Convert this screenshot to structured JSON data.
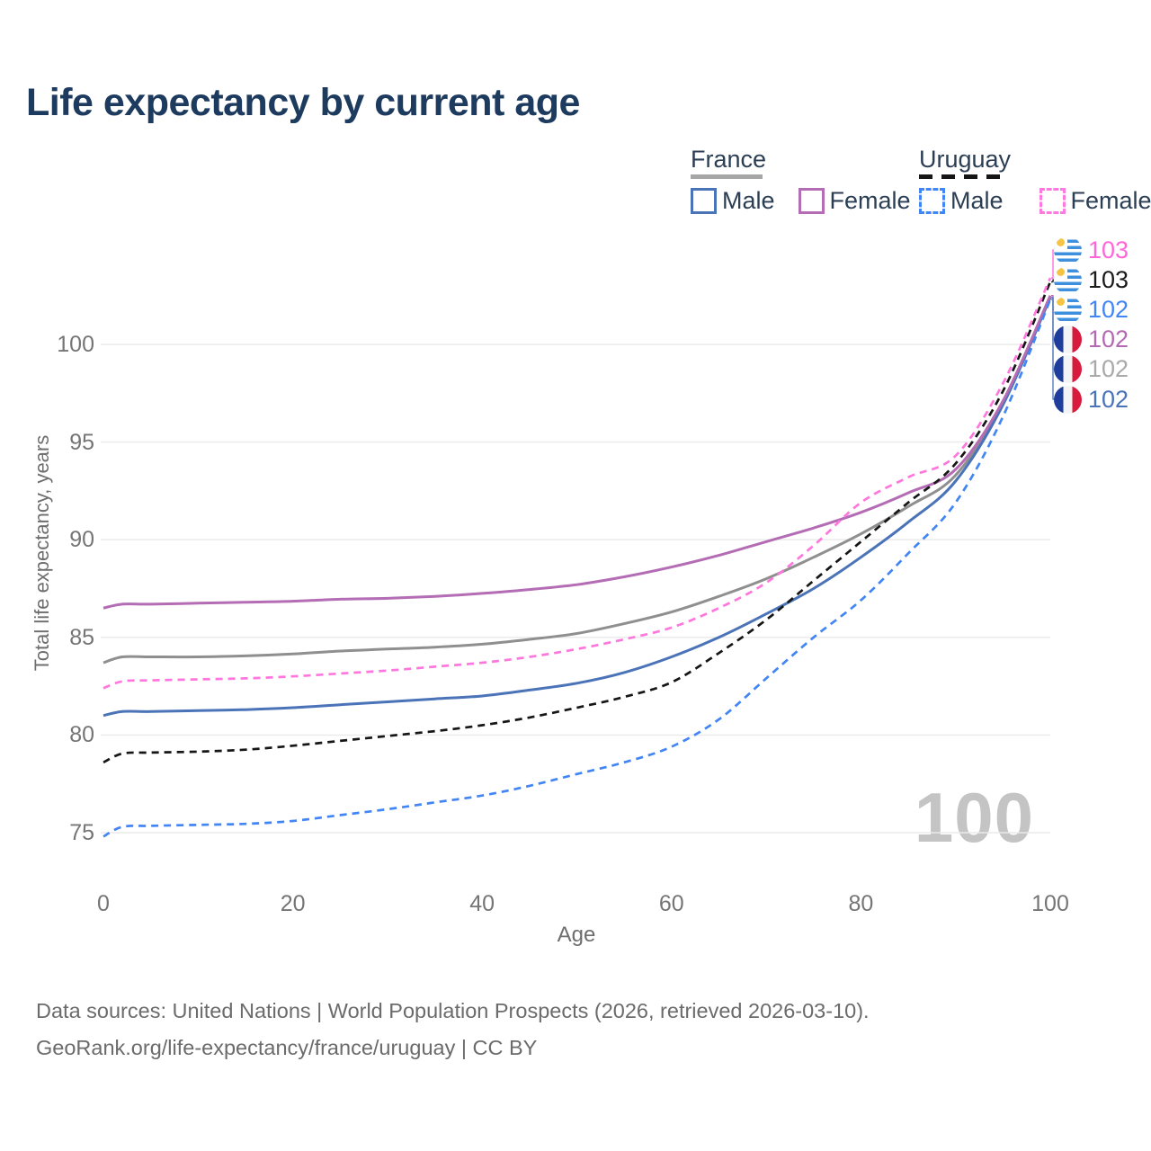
{
  "page": {
    "title": "Life expectancy by current age"
  },
  "legend": {
    "groups": [
      {
        "id": "france",
        "label": "France",
        "line_style": "solid",
        "line_color": "#a6a6a6",
        "items": [
          {
            "label": "Male",
            "color": "#4a73b8",
            "dash": false
          },
          {
            "label": "Female",
            "color": "#b46cb4",
            "dash": false
          }
        ]
      },
      {
        "id": "uruguay",
        "label": "Uruguay",
        "line_style": "dashed",
        "line_color": "#161616",
        "items": [
          {
            "label": "Male",
            "color": "#4285f4",
            "dash": true
          },
          {
            "label": "Female",
            "color": "#ff7ade",
            "dash": true
          }
        ]
      }
    ]
  },
  "watermark": "100",
  "end_labels": [
    {
      "flag": "uruguay",
      "value": "103",
      "color": "#ff66d9",
      "series": "Uruguay female"
    },
    {
      "flag": "uruguay",
      "value": "103",
      "color": "#1a1a1a",
      "series": "Uruguay (both sexes)"
    },
    {
      "flag": "uruguay",
      "value": "102",
      "color": "#4285f4",
      "series": "Uruguay male"
    },
    {
      "flag": "france",
      "value": "102",
      "color": "#b36ab3",
      "series": "France female"
    },
    {
      "flag": "france",
      "value": "102",
      "color": "#a9a9a9",
      "series": "France (both sexes)"
    },
    {
      "flag": "france",
      "value": "102",
      "color": "#4a73b8",
      "series": "France male"
    }
  ],
  "footer": {
    "line1": "Data sources: United Nations | World Population Prospects (2026, retrieved 2026-03-10).",
    "line2": "GeoRank.org/life-expectancy/france/uruguay | CC BY"
  },
  "chart_data": {
    "type": "line",
    "title": "Life expectancy by current age",
    "xlabel": "Age",
    "ylabel": "Total life expectancy, years",
    "x_ticks": [
      0,
      20,
      40,
      60,
      80,
      100
    ],
    "y_ticks": [
      75,
      80,
      85,
      90,
      95,
      100
    ],
    "xlim": [
      0,
      100
    ],
    "ylim_gridlines": [
      75,
      100
    ],
    "grid": "horizontal-only",
    "legend_position": "top-right",
    "x_ages": [
      0,
      2,
      5,
      10,
      15,
      20,
      25,
      30,
      35,
      40,
      45,
      50,
      55,
      60,
      65,
      70,
      75,
      80,
      85,
      90,
      95,
      100
    ],
    "series": [
      {
        "name": "France (both sexes)",
        "country": "France",
        "style": "solid",
        "color": "#8f8f8f",
        "values": [
          83.7,
          84.0,
          84.0,
          84.0,
          84.05,
          84.15,
          84.3,
          84.4,
          84.5,
          84.65,
          84.9,
          85.2,
          85.7,
          86.3,
          87.1,
          88.0,
          89.1,
          90.3,
          91.7,
          93.3,
          97.0,
          102.4
        ]
      },
      {
        "name": "France male",
        "country": "France",
        "style": "solid",
        "color": "#4a73b8",
        "values": [
          81.0,
          81.2,
          81.2,
          81.25,
          81.3,
          81.4,
          81.55,
          81.7,
          81.85,
          82.0,
          82.3,
          82.65,
          83.2,
          84.0,
          85.0,
          86.2,
          87.5,
          89.1,
          90.9,
          93.0,
          96.9,
          102.4
        ]
      },
      {
        "name": "France female",
        "country": "France",
        "style": "solid",
        "color": "#b46cb4",
        "values": [
          86.5,
          86.7,
          86.7,
          86.75,
          86.8,
          86.85,
          86.95,
          87.0,
          87.1,
          87.25,
          87.45,
          87.7,
          88.1,
          88.6,
          89.2,
          89.9,
          90.6,
          91.4,
          92.4,
          93.6,
          97.1,
          102.5
        ]
      },
      {
        "name": "Uruguay male",
        "country": "Uruguay",
        "style": "dashed",
        "color": "#4285f4",
        "values": [
          74.8,
          75.3,
          75.35,
          75.4,
          75.45,
          75.6,
          75.9,
          76.2,
          76.55,
          76.9,
          77.4,
          78.0,
          78.6,
          79.4,
          80.8,
          82.9,
          85.0,
          86.9,
          89.3,
          91.9,
          96.3,
          102.3
        ]
      },
      {
        "name": "Uruguay (both sexes)",
        "country": "Uruguay",
        "style": "dashed",
        "color": "#161616",
        "values": [
          78.6,
          79.05,
          79.1,
          79.15,
          79.25,
          79.45,
          79.7,
          79.95,
          80.2,
          80.5,
          80.9,
          81.4,
          81.95,
          82.7,
          84.2,
          85.9,
          87.9,
          89.9,
          91.9,
          93.9,
          97.6,
          103.2
        ]
      },
      {
        "name": "Uruguay female",
        "country": "Uruguay",
        "style": "dashed",
        "color": "#ff77dd",
        "values": [
          82.4,
          82.75,
          82.8,
          82.85,
          82.9,
          83.0,
          83.15,
          83.3,
          83.5,
          83.7,
          84.0,
          84.4,
          84.9,
          85.5,
          86.5,
          87.8,
          89.7,
          91.9,
          93.2,
          94.3,
          98.0,
          103.4
        ]
      }
    ]
  }
}
